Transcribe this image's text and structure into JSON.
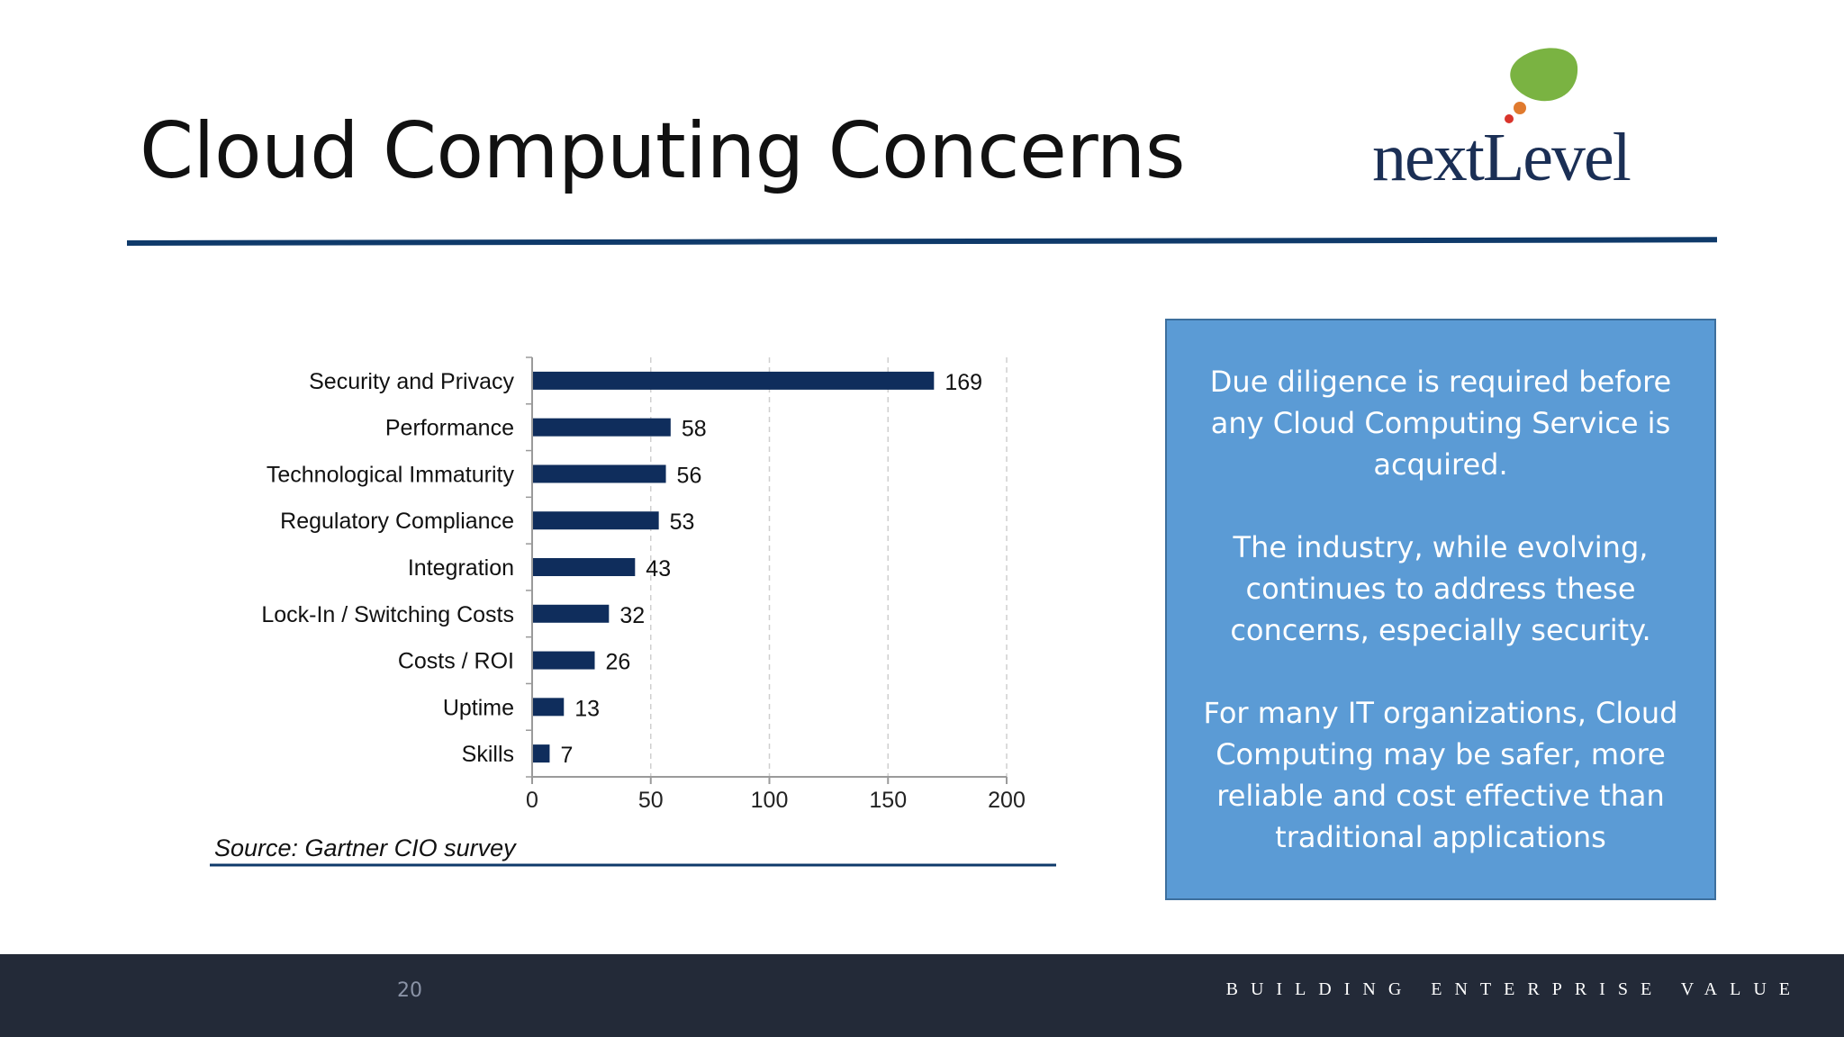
{
  "slide": {
    "title": "Cloud Computing Concerns",
    "logo_text": "nextLevel",
    "brand_color": "#0f3a6a",
    "logo_colors": [
      "#7ab342",
      "#e07a2e",
      "#d9342b",
      "#1b2f55"
    ]
  },
  "chart_data": {
    "type": "bar",
    "orientation": "horizontal",
    "categories": [
      "Security and Privacy",
      "Performance",
      "Technological Immaturity",
      "Regulatory Compliance",
      "Integration",
      "Lock-In / Switching Costs",
      "Costs / ROI",
      "Uptime",
      "Skills"
    ],
    "values": [
      169,
      58,
      56,
      53,
      43,
      32,
      26,
      13,
      7
    ],
    "title": "",
    "xlabel": "",
    "ylabel": "",
    "xlim": [
      0,
      200
    ],
    "xticks": [
      0,
      50,
      100,
      150,
      200
    ],
    "grid": "vertical dashed",
    "bar_color": "#0f2d5c",
    "source": "Source: Gartner CIO survey"
  },
  "info_box": {
    "paragraphs": [
      "Due diligence is required before any Cloud Computing Service is acquired.",
      "The industry, while evolving, continues to address these concerns, especially security.",
      "For many IT organizations, Cloud Computing may be safer, more reliable and cost effective than traditional applications"
    ],
    "background": "#5b9bd5"
  },
  "footer": {
    "page_number": "20",
    "tagline": "BUILDING ENTERPRISE VALUE"
  }
}
